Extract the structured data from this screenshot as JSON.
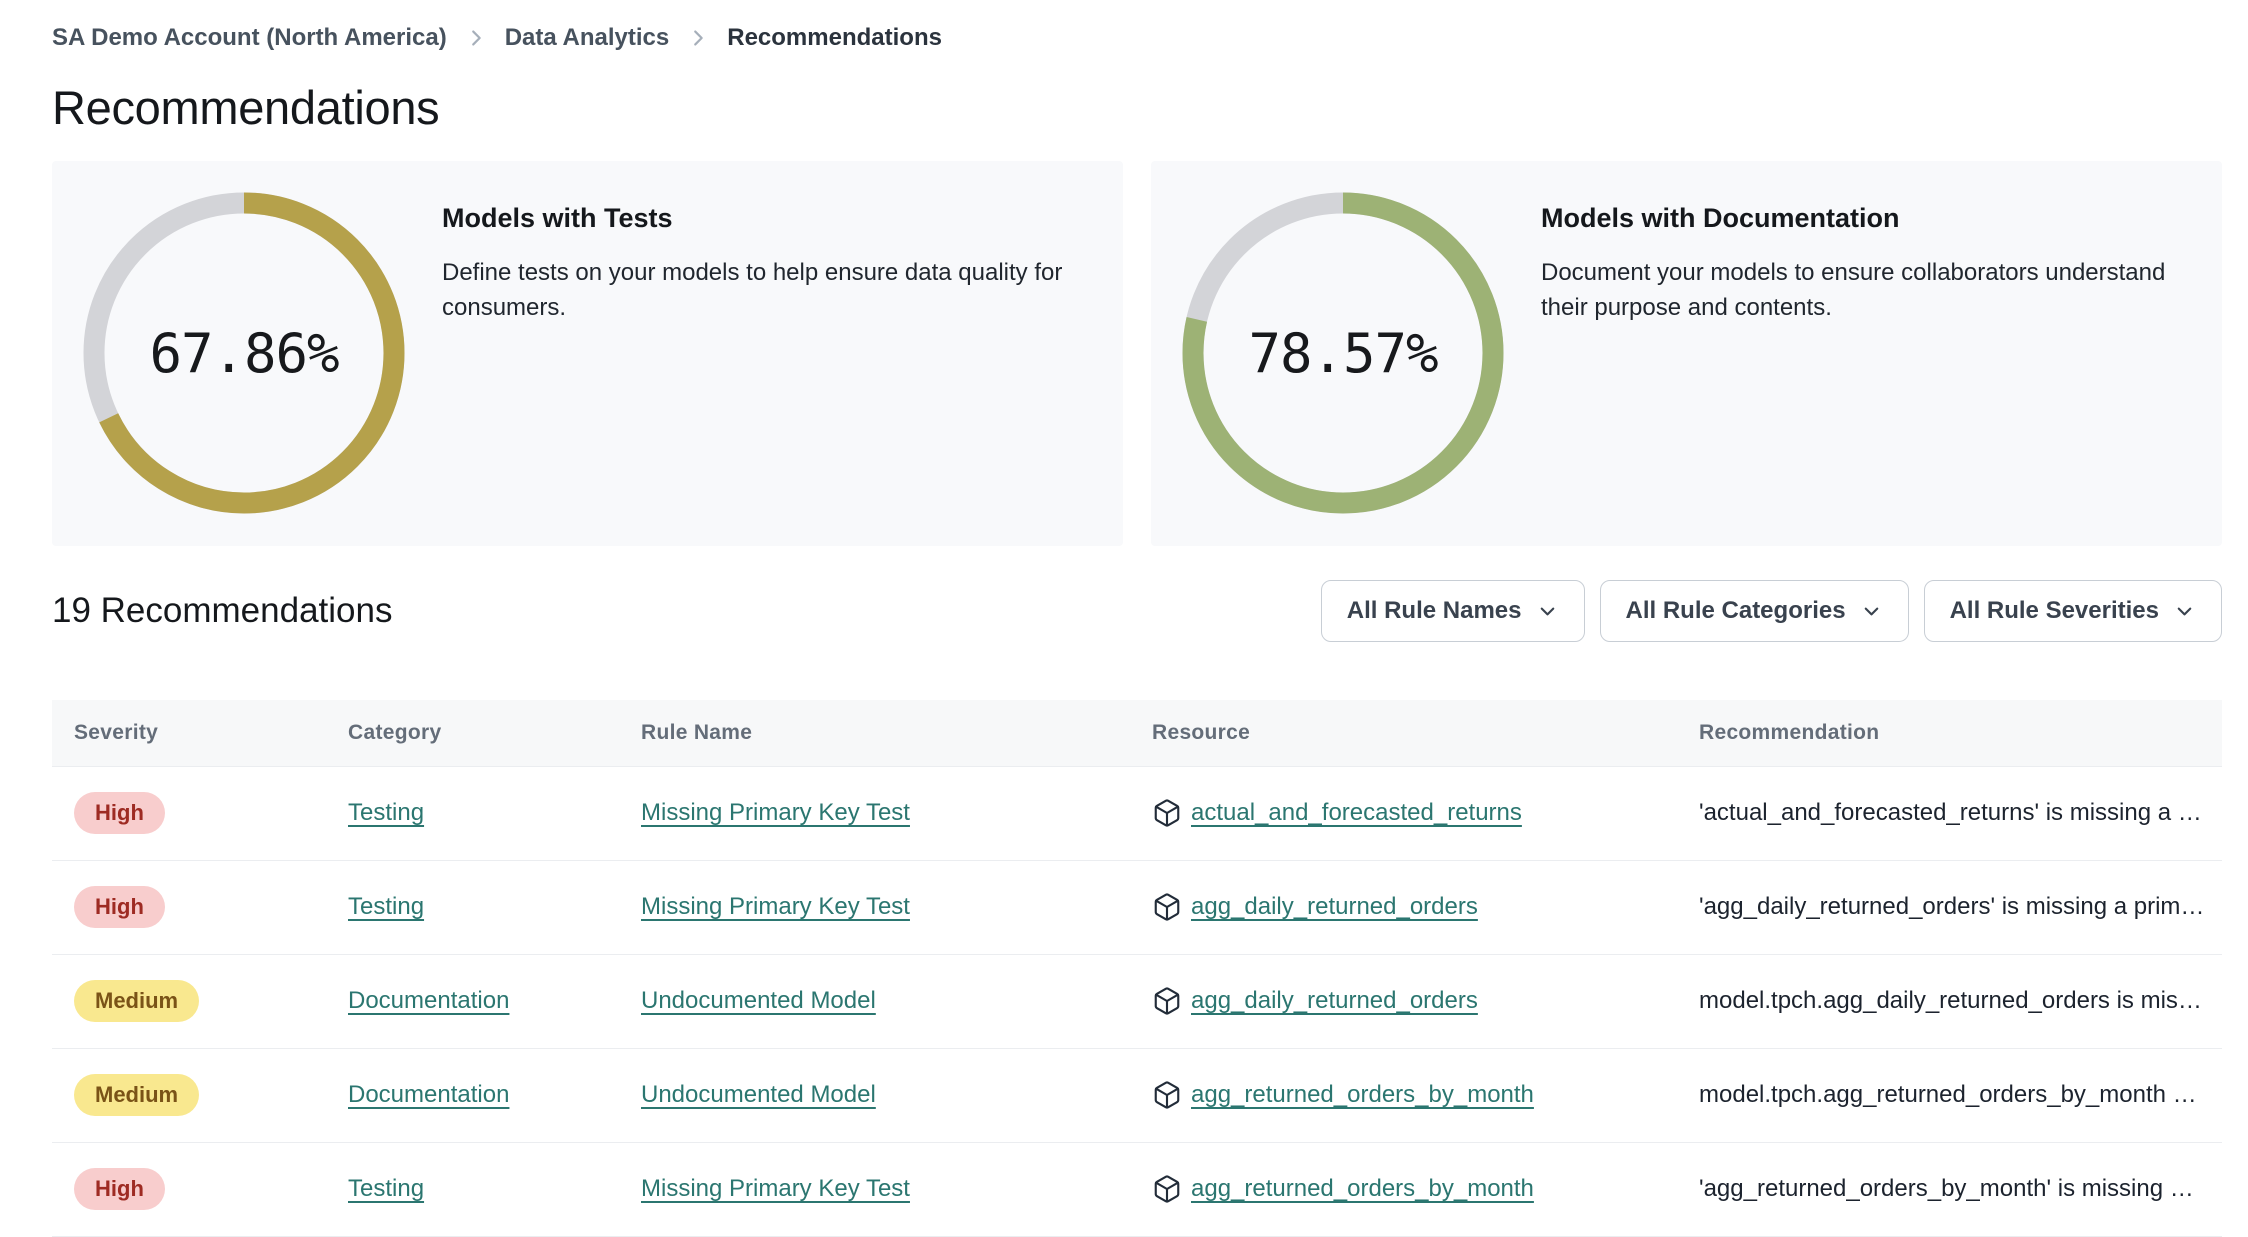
{
  "breadcrumb": {
    "items": [
      "SA Demo Account (North America)",
      "Data Analytics",
      "Recommendations"
    ]
  },
  "page": {
    "title": "Recommendations"
  },
  "summary_cards": [
    {
      "title": "Models with Tests",
      "description": "Define tests on your models to help ensure data quality for consumers.",
      "percent_label": "67.86%",
      "percent_value": 67.86,
      "ring_color": "#b5a14b",
      "track_color": "#d3d4d8"
    },
    {
      "title": "Models with Documentation",
      "description": "Document your models to ensure collaborators understand their purpose and contents.",
      "percent_label": "78.57%",
      "percent_value": 78.57,
      "ring_color": "#9db275",
      "track_color": "#d3d4d8"
    }
  ],
  "recommendations": {
    "count_heading": "19 Recommendations",
    "filters": [
      {
        "label": "All Rule Names"
      },
      {
        "label": "All Rule Categories"
      },
      {
        "label": "All Rule Severities"
      }
    ],
    "columns": [
      "Severity",
      "Category",
      "Rule Name",
      "Resource",
      "Recommendation"
    ],
    "severity_colors": {
      "High": {
        "bg": "#f8cdcd",
        "text": "#9e2b23"
      },
      "Medium": {
        "bg": "#f9e88f",
        "text": "#7a5317"
      }
    },
    "rows": [
      {
        "severity": "High",
        "category": "Testing",
        "rule_name": "Missing Primary Key Test",
        "resource": "actual_and_forecasted_returns",
        "recommendation": "'actual_and_forecasted_returns' is missing a …"
      },
      {
        "severity": "High",
        "category": "Testing",
        "rule_name": "Missing Primary Key Test",
        "resource": "agg_daily_returned_orders",
        "recommendation": "'agg_daily_returned_orders' is missing a prim…"
      },
      {
        "severity": "Medium",
        "category": "Documentation",
        "rule_name": "Undocumented Model",
        "resource": "agg_daily_returned_orders",
        "recommendation": "model.tpch.agg_daily_returned_orders is mis…"
      },
      {
        "severity": "Medium",
        "category": "Documentation",
        "rule_name": "Undocumented Model",
        "resource": "agg_returned_orders_by_month",
        "recommendation": "model.tpch.agg_returned_orders_by_month …"
      },
      {
        "severity": "High",
        "category": "Testing",
        "rule_name": "Missing Primary Key Test",
        "resource": "agg_returned_orders_by_month",
        "recommendation": "'agg_returned_orders_by_month' is missing …"
      }
    ]
  }
}
